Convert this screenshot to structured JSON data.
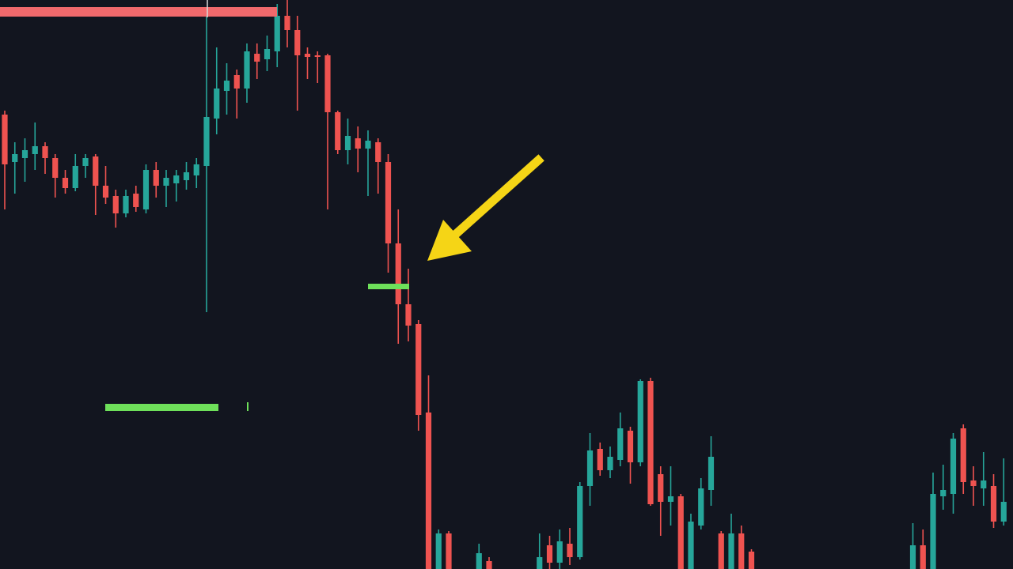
{
  "chart_data": {
    "type": "candlestick",
    "open": [
      575,
      515,
      520,
      525,
      535,
      520,
      495,
      482,
      510,
      522,
      485,
      472,
      450,
      475,
      455,
      505,
      485,
      488,
      492,
      498,
      510,
      570,
      605,
      625,
      608,
      652,
      645,
      655,
      700,
      682,
      652,
      650,
      650,
      578,
      530,
      545,
      532,
      540,
      515,
      412,
      335,
      310,
      198,
      0,
      45,
      null,
      null,
      0,
      10,
      null,
      null,
      null,
      null,
      0,
      30,
      8,
      32,
      15,
      105,
      152,
      125,
      138,
      175,
      135,
      238,
      120,
      85,
      92,
      0,
      55,
      100,
      45,
      0,
      45,
      22,
      null,
      null,
      null,
      null,
      null,
      null,
      null,
      null,
      null,
      null,
      null,
      null,
      null,
      null,
      null,
      0,
      30,
      0,
      92,
      95,
      178,
      112,
      102,
      105,
      60
    ],
    "close": [
      512,
      525,
      530,
      535,
      520,
      495,
      482,
      510,
      520,
      485,
      470,
      450,
      472,
      458,
      505,
      485,
      495,
      498,
      502,
      512,
      572,
      608,
      618,
      608,
      655,
      642,
      658,
      700,
      682,
      650,
      648,
      648,
      578,
      530,
      548,
      532,
      542,
      515,
      412,
      335,
      308,
      195,
      0,
      45,
      0,
      null,
      null,
      20,
      0,
      null,
      null,
      null,
      null,
      15,
      8,
      35,
      15,
      105,
      150,
      125,
      142,
      178,
      135,
      238,
      82,
      85,
      92,
      0,
      60,
      102,
      142,
      0,
      45,
      0,
      0,
      null,
      null,
      null,
      null,
      null,
      null,
      null,
      null,
      null,
      null,
      null,
      null,
      null,
      null,
      null,
      30,
      0,
      95,
      100,
      165,
      110,
      105,
      112,
      60,
      85
    ],
    "high": [
      580,
      540,
      545,
      565,
      540,
      525,
      505,
      525,
      525,
      525,
      510,
      480,
      480,
      485,
      512,
      515,
      505,
      505,
      515,
      520,
      700,
      660,
      640,
      632,
      665,
      665,
      675,
      715,
      720,
      700,
      660,
      655,
      652,
      580,
      570,
      560,
      555,
      545,
      525,
      455,
      380,
      315,
      245,
      50,
      48,
      null,
      null,
      32,
      15,
      null,
      null,
      null,
      null,
      45,
      42,
      50,
      52,
      110,
      172,
      160,
      155,
      198,
      180,
      240,
      242,
      130,
      130,
      95,
      70,
      115,
      168,
      48,
      70,
      55,
      25,
      null,
      null,
      null,
      null,
      null,
      null,
      null,
      null,
      null,
      null,
      null,
      null,
      null,
      null,
      null,
      58,
      50,
      122,
      132,
      172,
      183,
      130,
      148,
      120,
      140
    ],
    "low": [
      455,
      475,
      490,
      505,
      500,
      470,
      475,
      478,
      495,
      448,
      462,
      432,
      445,
      452,
      450,
      470,
      458,
      465,
      480,
      482,
      325,
      550,
      575,
      570,
      590,
      620,
      630,
      635,
      660,
      580,
      620,
      615,
      455,
      525,
      512,
      502,
      472,
      475,
      375,
      285,
      288,
      175,
      0,
      0,
      0,
      null,
      null,
      0,
      0,
      null,
      null,
      null,
      null,
      0,
      0,
      0,
      5,
      12,
      80,
      118,
      115,
      130,
      108,
      130,
      80,
      42,
      55,
      0,
      0,
      50,
      80,
      0,
      0,
      0,
      0,
      null,
      null,
      null,
      null,
      null,
      null,
      null,
      null,
      null,
      null,
      null,
      null,
      null,
      null,
      null,
      0,
      0,
      0,
      75,
      70,
      95,
      80,
      80,
      52,
      55
    ],
    "up_color": "#26a69a",
    "down_color": "#ef5350",
    "ylim": [
      0,
      720
    ]
  }
}
